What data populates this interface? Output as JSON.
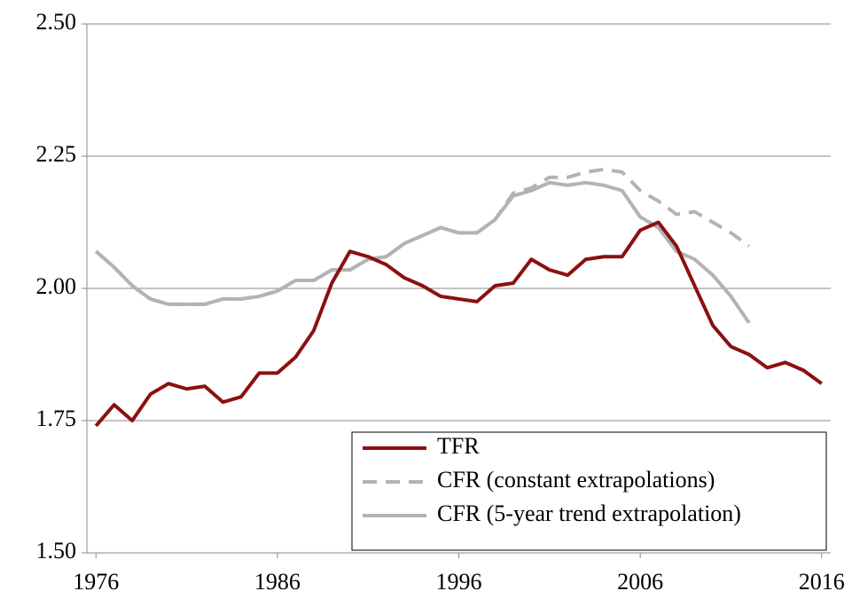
{
  "chart_data": {
    "type": "line",
    "x": [
      1976,
      1977,
      1978,
      1979,
      1980,
      1981,
      1982,
      1983,
      1984,
      1985,
      1986,
      1987,
      1988,
      1989,
      1990,
      1991,
      1992,
      1993,
      1994,
      1995,
      1996,
      1997,
      1998,
      1999,
      2000,
      2001,
      2002,
      2003,
      2004,
      2005,
      2006,
      2007,
      2008,
      2009,
      2010,
      2011,
      2012,
      2013,
      2014,
      2015,
      2016
    ],
    "series": [
      {
        "name": "TFR",
        "color": "#8b1010",
        "style": "solid",
        "values": [
          1.74,
          1.78,
          1.75,
          1.8,
          1.82,
          1.81,
          1.815,
          1.785,
          1.795,
          1.84,
          1.84,
          1.87,
          1.92,
          2.01,
          2.07,
          2.06,
          2.045,
          2.02,
          2.005,
          1.985,
          1.98,
          1.975,
          2.005,
          2.01,
          2.055,
          2.035,
          2.025,
          2.055,
          2.06,
          2.06,
          2.11,
          2.125,
          2.08,
          2.005,
          1.93,
          1.89,
          1.875,
          1.85,
          1.86,
          1.845,
          1.82
        ]
      },
      {
        "name": "CFR (constant extrapolations)",
        "color": "#b3b3b3",
        "style": "dashed",
        "values": [
          2.07,
          2.04,
          2.005,
          1.98,
          1.97,
          1.97,
          1.97,
          1.98,
          1.98,
          1.985,
          1.995,
          2.015,
          2.015,
          2.035,
          2.035,
          2.055,
          2.06,
          2.085,
          2.1,
          2.115,
          2.105,
          2.105,
          2.13,
          2.18,
          2.19,
          2.21,
          2.21,
          2.22,
          2.225,
          2.22,
          2.185,
          2.165,
          2.14,
          2.145,
          2.125,
          2.105,
          2.08,
          null,
          null,
          null,
          null
        ]
      },
      {
        "name": "CFR (5-year trend extrapolation)",
        "color": "#b3b3b3",
        "style": "solid",
        "values": [
          2.07,
          2.04,
          2.005,
          1.98,
          1.97,
          1.97,
          1.97,
          1.98,
          1.98,
          1.985,
          1.995,
          2.015,
          2.015,
          2.035,
          2.035,
          2.055,
          2.06,
          2.085,
          2.1,
          2.115,
          2.105,
          2.105,
          2.13,
          2.175,
          2.185,
          2.2,
          2.195,
          2.2,
          2.195,
          2.185,
          2.135,
          2.115,
          2.07,
          2.055,
          2.025,
          1.985,
          1.935,
          null,
          null,
          null,
          null
        ]
      }
    ],
    "xlim": [
      1975.5,
      2016.5
    ],
    "xticks": [
      1976,
      1986,
      1996,
      2006,
      2016
    ],
    "ylim": [
      1.5,
      2.5
    ],
    "yticks": [
      {
        "value": 1.5,
        "label": "1.50"
      },
      {
        "value": 1.75,
        "label": "1.75"
      },
      {
        "value": 2.0,
        "label": "2.00"
      },
      {
        "value": 2.25,
        "label": "2.25"
      },
      {
        "value": 2.5,
        "label": "2.50"
      }
    ],
    "grid": true,
    "legend": "lower-right"
  }
}
